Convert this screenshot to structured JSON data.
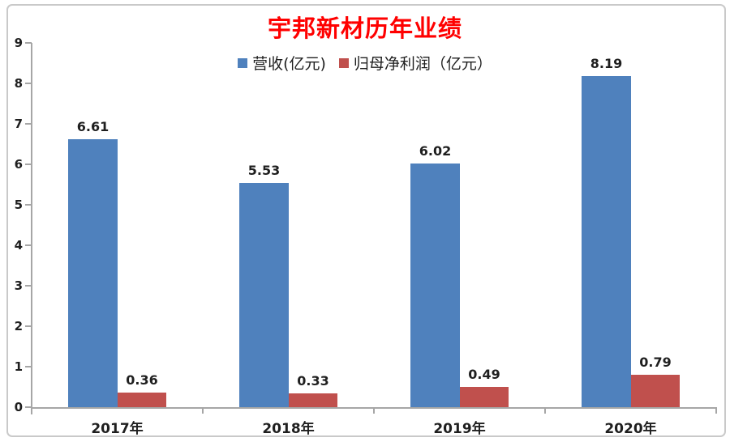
{
  "chart_data": {
    "type": "bar",
    "title": "宇邦新材历年业绩",
    "categories": [
      "2017年",
      "2018年",
      "2019年",
      "2020年"
    ],
    "series": [
      {
        "name": "营收(亿元)",
        "color": "#4F81BD",
        "values": [
          6.61,
          5.53,
          6.02,
          8.19
        ]
      },
      {
        "name": "归母净利润（亿元）",
        "color": "#C0504D",
        "values": [
          0.36,
          0.33,
          0.49,
          0.79
        ]
      }
    ],
    "value_labels": [
      "6.61",
      "5.53",
      "6.02",
      "8.19",
      "0.36",
      "0.33",
      "0.49",
      "0.79"
    ],
    "ylim": [
      0,
      9
    ],
    "yticks": [
      0,
      1,
      2,
      3,
      4,
      5,
      6,
      7,
      8,
      9
    ],
    "grid": false,
    "legend_position": "top-center",
    "xlabel": "",
    "ylabel": ""
  },
  "colors": {
    "title": "#FF0000",
    "axis": "#A6A6A6",
    "text": "#1F1F1F",
    "frame_border": "#C9C9C9",
    "background": "#FFFFFF"
  }
}
